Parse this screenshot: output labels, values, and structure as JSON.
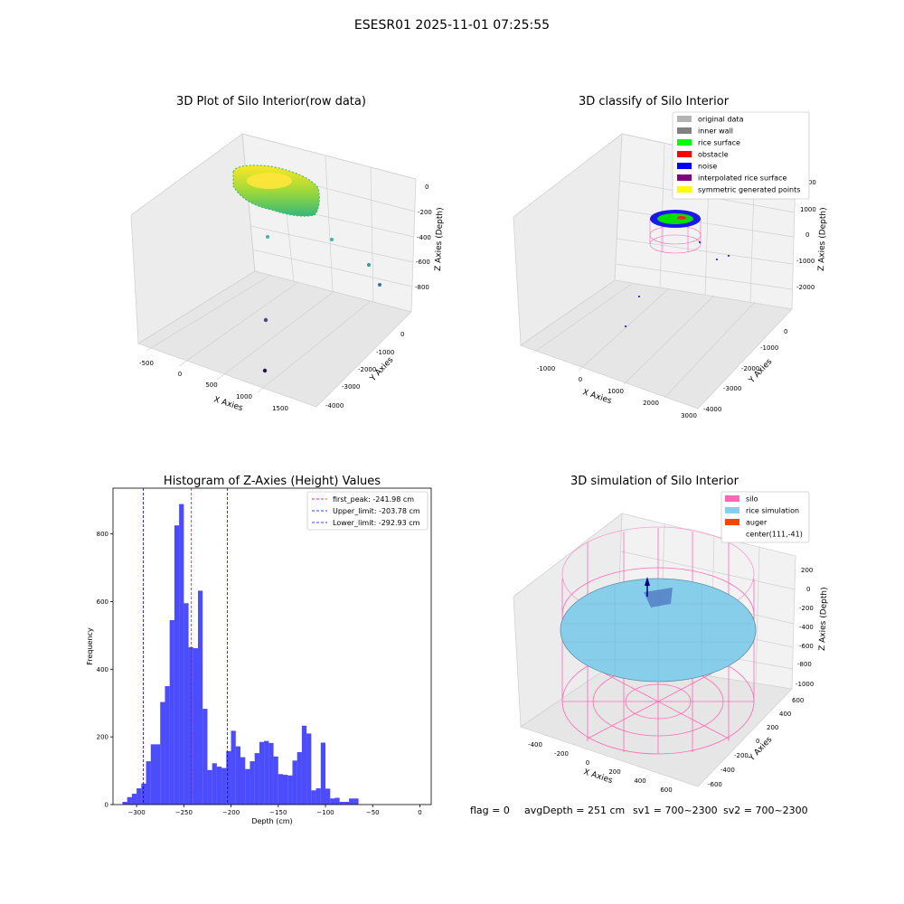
{
  "figure": {
    "suptitle": "ESESR01 2025-11-01 07:25:55",
    "status_line": {
      "flag": "flag = 0",
      "avg_depth": "avgDepth = 251 cm",
      "sv1": "sv1 = 700~2300",
      "sv2": "sv2 = 700~2300"
    }
  },
  "panels": {
    "raw": {
      "title": "3D Plot of Silo Interior(row data)",
      "xlabel": "X Axies",
      "ylabel": "Y Axies",
      "zlabel": "Z Axies (Depth)",
      "xticks": [
        "-500",
        "0",
        "500",
        "1000",
        "1500"
      ],
      "yticks": [
        "0",
        "-1000",
        "-2000",
        "-3000",
        "-4000"
      ],
      "zticks": [
        "0",
        "-200",
        "-400",
        "-600",
        "-800"
      ]
    },
    "classify": {
      "title": "3D classify of Silo Interior",
      "xlabel": "X Axies",
      "ylabel": "Y Axies",
      "zlabel": "Z Axies (Depth)",
      "xticks": [
        "-1000",
        "0",
        "1000",
        "2000",
        "3000"
      ],
      "yticks": [
        "0",
        "-1000",
        "-2000",
        "-3000",
        "-4000"
      ],
      "zticks": [
        "2000",
        "1000",
        "0",
        "-1000",
        "-2000"
      ],
      "legend": [
        {
          "label": "original data",
          "color": "#b3b3b3"
        },
        {
          "label": "inner wall",
          "color": "#808080"
        },
        {
          "label": "rice surface",
          "color": "#00ff00"
        },
        {
          "label": "obstacle",
          "color": "#ff0000"
        },
        {
          "label": "noise",
          "color": "#0000ff"
        },
        {
          "label": "interpolated rice surface",
          "color": "#800080"
        },
        {
          "label": "symmetric generated points",
          "color": "#ffff00"
        }
      ]
    },
    "simulation": {
      "title": "3D simulation of Silo Interior",
      "xlabel": "X Axies",
      "ylabel": "Y Axies",
      "zlabel": "Z Axies (Depth)",
      "xticks": [
        "-400",
        "-200",
        "0",
        "200",
        "400",
        "600"
      ],
      "yticks": [
        "600",
        "400",
        "200",
        "0",
        "-200",
        "-400",
        "-600"
      ],
      "zticks": [
        "200",
        "0",
        "-200",
        "-400",
        "-600",
        "-800",
        "-1000"
      ],
      "legend": [
        {
          "label": "silo",
          "color": "#ff69b4"
        },
        {
          "label": "rice simulation",
          "color": "#87ceeb"
        },
        {
          "label": "auger",
          "color": "#ff4500"
        },
        {
          "label": "center(111,-41)",
          "color": ""
        }
      ]
    }
  },
  "chart_data": {
    "type": "bar",
    "title": "Histogram of Z-Axies (Height) Values",
    "xlabel": "Depth (cm)",
    "ylabel": "Frequency",
    "xlim": [
      -325,
      12
    ],
    "ylim": [
      0,
      935
    ],
    "xticks": [
      -300,
      -250,
      -200,
      -150,
      -100,
      -50,
      0
    ],
    "yticks": [
      0,
      200,
      400,
      600,
      800
    ],
    "bin_start": -315,
    "bin_width": 5,
    "values": [
      8,
      22,
      32,
      48,
      62,
      128,
      178,
      178,
      303,
      350,
      545,
      825,
      888,
      595,
      465,
      462,
      632,
      283,
      102,
      122,
      112,
      108,
      158,
      218,
      172,
      140,
      105,
      128,
      152,
      185,
      188,
      182,
      142,
      90,
      88,
      86,
      130,
      155,
      233,
      210,
      42,
      48,
      183,
      47,
      18,
      20,
      8,
      8,
      18,
      18
    ],
    "bar_color": "#0000ff",
    "lines": [
      {
        "label": "first_peak: -241.98 cm",
        "x": -241.98,
        "color": "#ff0000"
      },
      {
        "label": "Upper_limit: -203.78 cm",
        "x": -203.78,
        "color": "#0000ff"
      },
      {
        "label": "Lower_limit: -292.93 cm",
        "x": -292.93,
        "color": "#0000ff"
      }
    ],
    "legend_position": "top-right"
  }
}
